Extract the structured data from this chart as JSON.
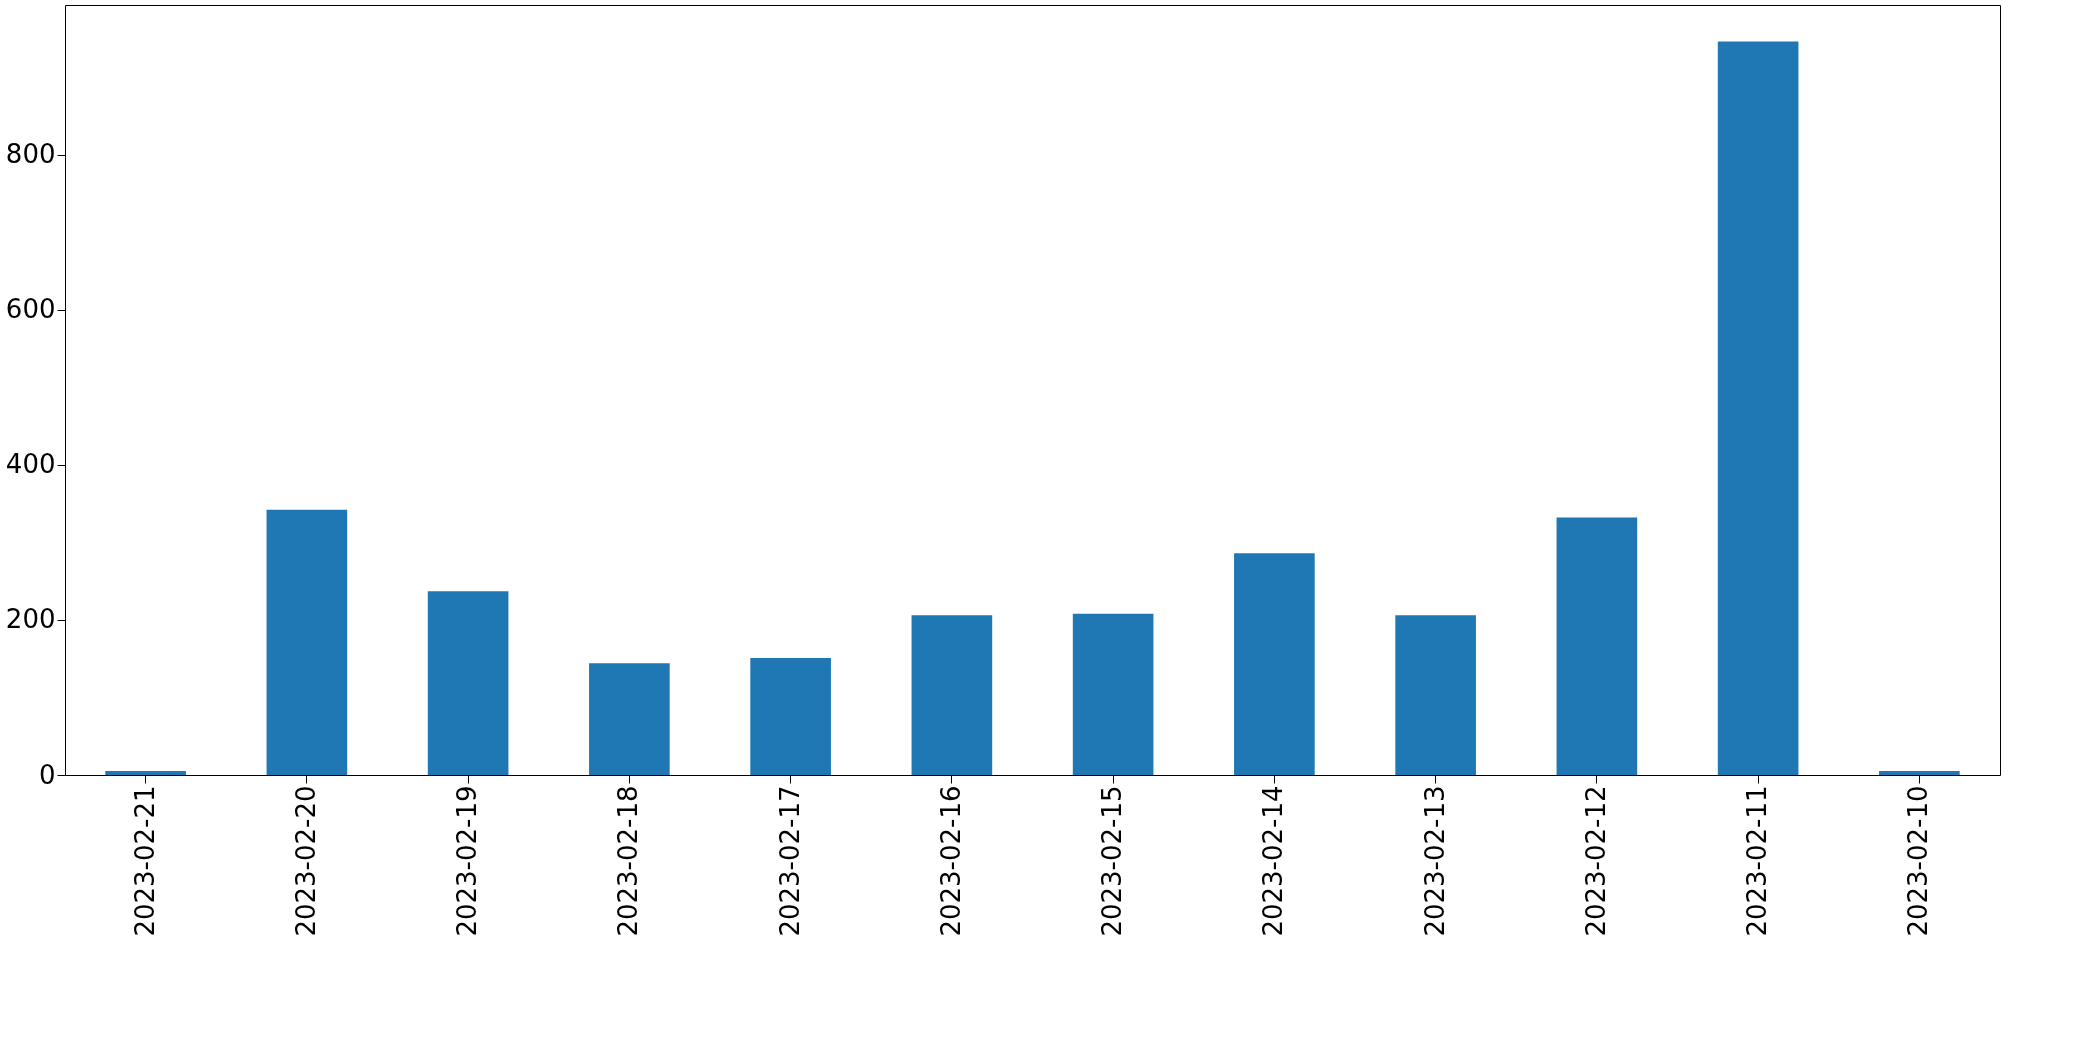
{
  "chart_data": {
    "type": "bar",
    "categories": [
      "2023-02-21",
      "2023-02-20",
      "2023-02-19",
      "2023-02-18",
      "2023-02-17",
      "2023-02-16",
      "2023-02-15",
      "2023-02-14",
      "2023-02-13",
      "2023-02-12",
      "2023-02-11",
      "2023-02-10"
    ],
    "values": [
      5,
      342,
      237,
      144,
      151,
      206,
      208,
      286,
      206,
      332,
      946,
      5
    ],
    "color": "#1f77b4",
    "ylim": [
      0,
      993
    ],
    "yticks": [
      0,
      200,
      400,
      600,
      800
    ],
    "grid": false
  }
}
